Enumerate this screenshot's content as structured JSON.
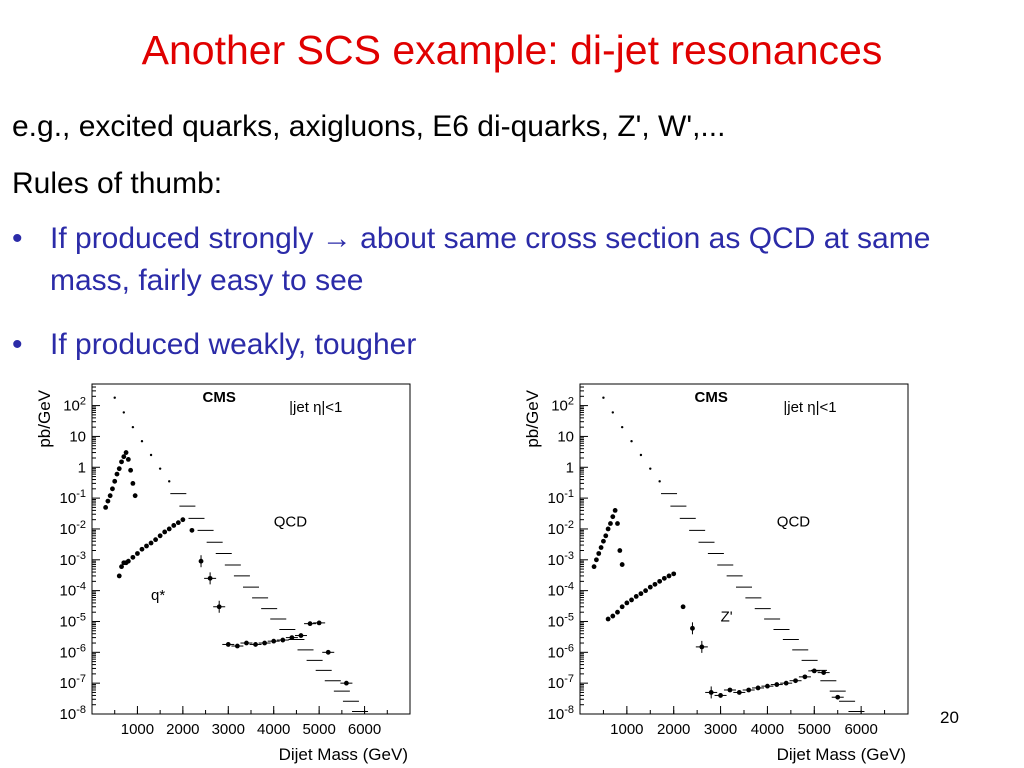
{
  "slide": {
    "title": "Another SCS example: di-jet resonances",
    "line1": "e.g., excited quarks, axigluons, E6 di-quarks, Z', W',...",
    "line2": "Rules of thumb:",
    "bullets": [
      {
        "before": "If produced strongly",
        "arrow": "→",
        "after": " about same cross section as QCD at same mass, fairly easy to see"
      },
      {
        "before": "If produced weakly,  tougher",
        "arrow": "",
        "after": ""
      }
    ],
    "bullet_symbol": "•",
    "page_number": "20",
    "colors": {
      "title": "#e00000",
      "bullets": "#2b2ba8"
    }
  },
  "chart_data": [
    {
      "type": "scatter",
      "title": "CMS",
      "annotation": "|jet η|<1",
      "xlabel": "Dijet Mass (GeV)",
      "ylabel": "pb/GeV",
      "xlim": [
        0,
        7000
      ],
      "ylim_log10": [
        -8,
        2.7
      ],
      "xticks": [
        "1000",
        "2000",
        "3000",
        "4000",
        "5000",
        "6000"
      ],
      "yticks": [
        "10^2",
        "10",
        "1",
        "10^-1",
        "10^-2",
        "10^-3",
        "10^-4",
        "10^-5",
        "10^-6",
        "10^-7",
        "10^-8"
      ],
      "series": [
        {
          "name": "QCD",
          "label_at": [
            4000,
            0.012
          ],
          "points": [
            [
              500,
              180
            ],
            [
              700,
              60
            ],
            [
              900,
              20
            ],
            [
              1100,
              7
            ],
            [
              1300,
              2.5
            ],
            [
              1500,
              0.9
            ],
            [
              1700,
              0.35
            ],
            [
              1900,
              0.14
            ],
            [
              2100,
              0.055
            ],
            [
              2300,
              0.022
            ],
            [
              2500,
              0.009
            ],
            [
              2700,
              0.0037
            ],
            [
              2900,
              0.0016
            ],
            [
              3100,
              0.00068
            ],
            [
              3300,
              0.0003
            ],
            [
              3500,
              0.00013
            ],
            [
              3700,
              5.8e-05
            ],
            [
              3900,
              2.6e-05
            ],
            [
              4100,
              1.2e-05
            ],
            [
              4300,
              5.5e-06
            ],
            [
              4500,
              2.6e-06
            ],
            [
              4700,
              1.2e-06
            ],
            [
              4900,
              5.5e-07
            ],
            [
              5100,
              2.6e-07
            ],
            [
              5300,
              1.2e-07
            ],
            [
              5500,
              5.5e-08
            ],
            [
              5700,
              2.6e-08
            ],
            [
              5900,
              1.2e-08
            ]
          ]
        },
        {
          "name": "q*",
          "label_at": [
            1300,
            5e-05
          ],
          "points": [
            [
              300,
              0.05
            ],
            [
              350,
              0.08
            ],
            [
              400,
              0.12
            ],
            [
              450,
              0.2
            ],
            [
              500,
              0.35
            ],
            [
              550,
              0.6
            ],
            [
              600,
              0.9
            ],
            [
              650,
              1.5
            ],
            [
              700,
              2.2
            ],
            [
              750,
              3
            ],
            [
              800,
              1.8
            ],
            [
              850,
              0.8
            ],
            [
              900,
              0.3
            ],
            [
              950,
              0.12
            ],
            [
              600,
              0.0003
            ],
            [
              650,
              0.0006
            ],
            [
              700,
              0.0008
            ],
            [
              750,
              0.0008
            ],
            [
              800,
              0.0009
            ],
            [
              900,
              0.0012
            ],
            [
              1000,
              0.0016
            ],
            [
              1100,
              0.0022
            ],
            [
              1200,
              0.0028
            ],
            [
              1300,
              0.0035
            ],
            [
              1400,
              0.0045
            ],
            [
              1500,
              0.006
            ],
            [
              1600,
              0.008
            ],
            [
              1700,
              0.01
            ],
            [
              1800,
              0.013
            ],
            [
              1900,
              0.016
            ],
            [
              2000,
              0.02
            ],
            [
              2200,
              0.009
            ],
            [
              2400,
              0.0009
            ],
            [
              2600,
              0.00025
            ],
            [
              2800,
              3e-05
            ],
            [
              3000,
              1.8e-06
            ],
            [
              3200,
              1.6e-06
            ],
            [
              3400,
              2e-06
            ],
            [
              3600,
              1.8e-06
            ],
            [
              3800,
              2e-06
            ],
            [
              4000,
              2.3e-06
            ],
            [
              4200,
              2.5e-06
            ],
            [
              4400,
              3e-06
            ],
            [
              4600,
              3.5e-06
            ],
            [
              4800,
              8.5e-06
            ],
            [
              5000,
              9e-06
            ],
            [
              5200,
              1e-06
            ],
            [
              5600,
              1e-07
            ]
          ]
        }
      ]
    },
    {
      "type": "scatter",
      "title": "CMS",
      "annotation": "|jet η|<1",
      "xlabel": "Dijet Mass (GeV)",
      "ylabel": "pb/GeV",
      "xlim": [
        0,
        7000
      ],
      "ylim_log10": [
        -8,
        2.7
      ],
      "xticks": [
        "1000",
        "2000",
        "3000",
        "4000",
        "5000",
        "6000"
      ],
      "yticks": [
        "10^2",
        "10",
        "1",
        "10^-1",
        "10^-2",
        "10^-3",
        "10^-4",
        "10^-5",
        "10^-6",
        "10^-7",
        "10^-8"
      ],
      "series": [
        {
          "name": "QCD",
          "label_at": [
            4200,
            0.012
          ],
          "points": [
            [
              500,
              180
            ],
            [
              700,
              60
            ],
            [
              900,
              20
            ],
            [
              1100,
              7
            ],
            [
              1300,
              2.5
            ],
            [
              1500,
              0.9
            ],
            [
              1700,
              0.35
            ],
            [
              1900,
              0.14
            ],
            [
              2100,
              0.055
            ],
            [
              2300,
              0.022
            ],
            [
              2500,
              0.009
            ],
            [
              2700,
              0.0037
            ],
            [
              2900,
              0.0016
            ],
            [
              3100,
              0.00068
            ],
            [
              3300,
              0.0003
            ],
            [
              3500,
              0.00013
            ],
            [
              3700,
              5.8e-05
            ],
            [
              3900,
              2.6e-05
            ],
            [
              4100,
              1.2e-05
            ],
            [
              4300,
              5.5e-06
            ],
            [
              4500,
              2.6e-06
            ],
            [
              4700,
              1.2e-06
            ],
            [
              4900,
              5.5e-07
            ],
            [
              5100,
              2.6e-07
            ],
            [
              5300,
              1.2e-07
            ],
            [
              5500,
              5.5e-08
            ],
            [
              5700,
              2.6e-08
            ],
            [
              5900,
              1.2e-08
            ]
          ]
        },
        {
          "name": "Z'",
          "label_at": [
            3000,
            1e-05
          ],
          "points": [
            [
              300,
              0.0006
            ],
            [
              350,
              0.001
            ],
            [
              400,
              0.0016
            ],
            [
              450,
              0.0025
            ],
            [
              500,
              0.004
            ],
            [
              550,
              0.006
            ],
            [
              600,
              0.01
            ],
            [
              650,
              0.015
            ],
            [
              700,
              0.025
            ],
            [
              750,
              0.04
            ],
            [
              800,
              0.015
            ],
            [
              850,
              0.002
            ],
            [
              900,
              0.0007
            ],
            [
              600,
              1.2e-05
            ],
            [
              700,
              1.5e-05
            ],
            [
              800,
              2e-05
            ],
            [
              900,
              3e-05
            ],
            [
              1000,
              4e-05
            ],
            [
              1100,
              5e-05
            ],
            [
              1200,
              6.5e-05
            ],
            [
              1300,
              8e-05
            ],
            [
              1400,
              0.0001
            ],
            [
              1500,
              0.00013
            ],
            [
              1600,
              0.00016
            ],
            [
              1700,
              0.0002
            ],
            [
              1800,
              0.00025
            ],
            [
              1900,
              0.0003
            ],
            [
              2000,
              0.00035
            ],
            [
              2200,
              3e-05
            ],
            [
              2400,
              6e-06
            ],
            [
              2600,
              1.5e-06
            ],
            [
              2800,
              5e-08
            ],
            [
              3000,
              4e-08
            ],
            [
              3200,
              6e-08
            ],
            [
              3400,
              5e-08
            ],
            [
              3600,
              6e-08
            ],
            [
              3800,
              7e-08
            ],
            [
              4000,
              8e-08
            ],
            [
              4200,
              9e-08
            ],
            [
              4400,
              1e-07
            ],
            [
              4600,
              1.2e-07
            ],
            [
              4800,
              1.6e-07
            ],
            [
              5000,
              2.5e-07
            ],
            [
              5200,
              2.2e-07
            ],
            [
              5500,
              3.5e-08
            ]
          ]
        }
      ]
    }
  ]
}
